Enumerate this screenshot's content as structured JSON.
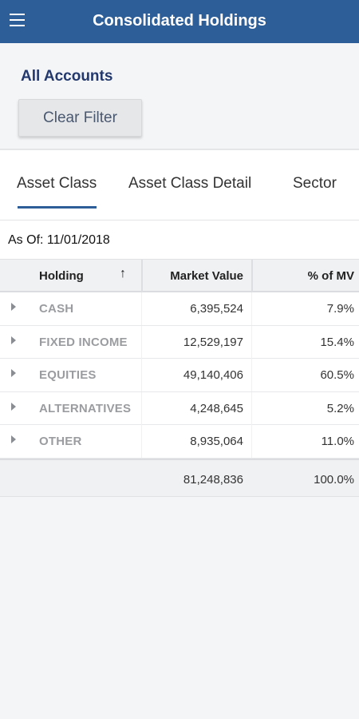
{
  "header": {
    "title": "Consolidated Holdings",
    "menu_icon": "hamburger-menu-icon"
  },
  "filter": {
    "accounts_label": "All Accounts",
    "clear_button": "Clear Filter"
  },
  "tabs": [
    {
      "label": "Asset Class",
      "active": true
    },
    {
      "label": "Asset Class Detail",
      "active": false
    },
    {
      "label": "Sector",
      "active": false
    }
  ],
  "as_of": "As Of: 11/01/2018",
  "table": {
    "columns": {
      "holding": "Holding",
      "market_value": "Market Value",
      "pct_mv": "% of MV"
    },
    "sort_icon": "↑",
    "rows": [
      {
        "holding": "CASH",
        "market_value": "6,395,524",
        "pct_mv": "7.9%"
      },
      {
        "holding": "FIXED INCOME",
        "market_value": "12,529,197",
        "pct_mv": "15.4%"
      },
      {
        "holding": "EQUITIES",
        "market_value": "49,140,406",
        "pct_mv": "60.5%"
      },
      {
        "holding": "ALTERNATIVES",
        "market_value": "4,248,645",
        "pct_mv": "5.2%"
      },
      {
        "holding": "OTHER",
        "market_value": "8,935,064",
        "pct_mv": "11.0%"
      }
    ],
    "total": {
      "market_value": "81,248,836",
      "pct_mv": "100.0%"
    }
  },
  "colors": {
    "header_bg": "#2e5e98",
    "accent": "#2e5e98",
    "accounts_text": "#23396e"
  }
}
